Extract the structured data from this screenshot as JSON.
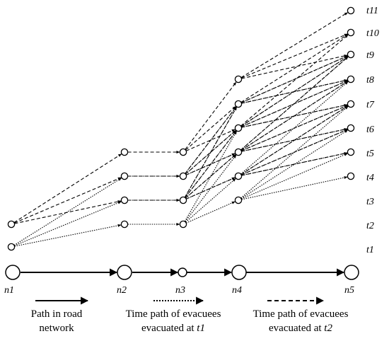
{
  "time_labels": [
    "t11",
    "t10",
    "t9",
    "t8",
    "t7",
    "t6",
    "t5",
    "t4",
    "t3",
    "t2",
    "t1"
  ],
  "network_nodes": [
    "n1",
    "n2",
    "n3",
    "n4",
    "n5"
  ],
  "legend": {
    "road": {
      "line1": "Path in road",
      "line2": "network"
    },
    "t1": {
      "line1": "Time path of evacuees",
      "line2_prefix": "evacuated at ",
      "line2_italic": "t1"
    },
    "t2": {
      "line1": "Time path of evacuees",
      "line2_prefix": "evacuated at ",
      "line2_italic": "t2"
    }
  }
}
